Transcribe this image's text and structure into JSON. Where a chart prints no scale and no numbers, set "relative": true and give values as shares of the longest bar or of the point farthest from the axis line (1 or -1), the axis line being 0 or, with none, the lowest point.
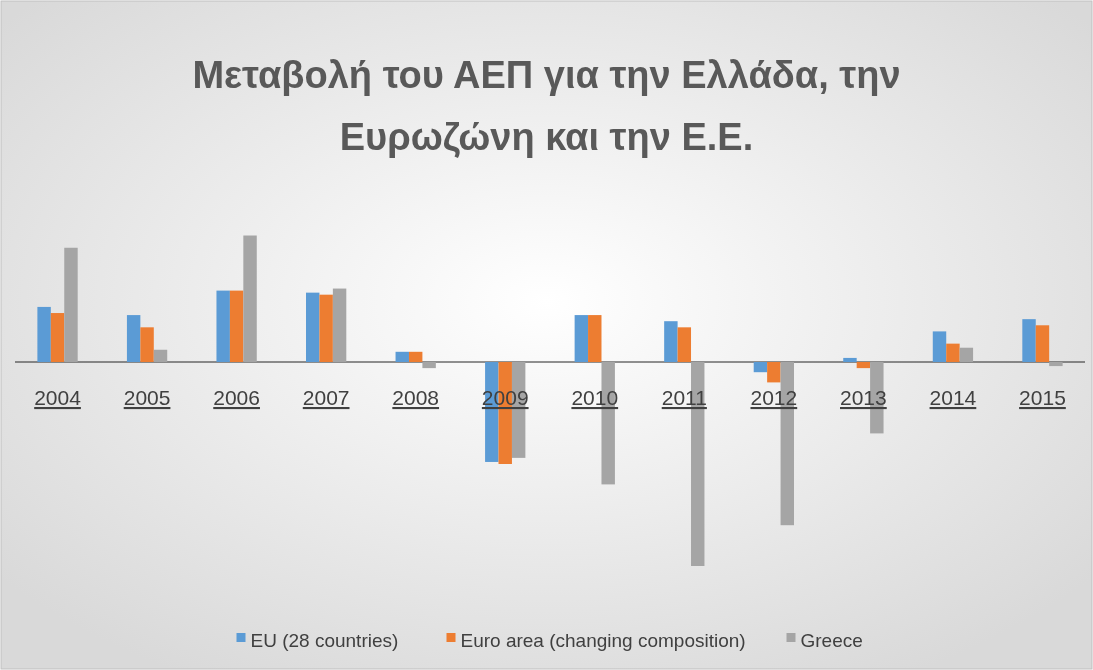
{
  "chart_data": {
    "type": "bar",
    "title": "Μεταβολή του ΑΕΠ για την Ελλάδα, την Ευρωζώνη και την Ε.Ε.",
    "relative": true,
    "categories": [
      "2004",
      "2005",
      "2006",
      "2007",
      "2008",
      "2009",
      "2010",
      "2011",
      "2012",
      "2013",
      "2014",
      "2015"
    ],
    "series": [
      {
        "name": "EU (28 countries)",
        "color": "#5b9bd5",
        "values": [
          0.27,
          0.23,
          0.35,
          0.34,
          0.05,
          -0.49,
          0.23,
          0.2,
          -0.05,
          0.02,
          0.15,
          0.21
        ]
      },
      {
        "name": "Euro area (changing composition)",
        "color": "#ed7d31",
        "values": [
          0.24,
          0.17,
          0.35,
          0.33,
          0.05,
          -0.5,
          0.23,
          0.17,
          -0.1,
          -0.03,
          0.09,
          0.18
        ]
      },
      {
        "name": "Greece",
        "color": "#a5a5a5",
        "values": [
          0.56,
          0.06,
          0.62,
          0.36,
          -0.03,
          -0.47,
          -0.6,
          -1,
          -0.8,
          -0.35,
          0.07,
          -0.02
        ]
      }
    ],
    "legend": "bottom"
  }
}
